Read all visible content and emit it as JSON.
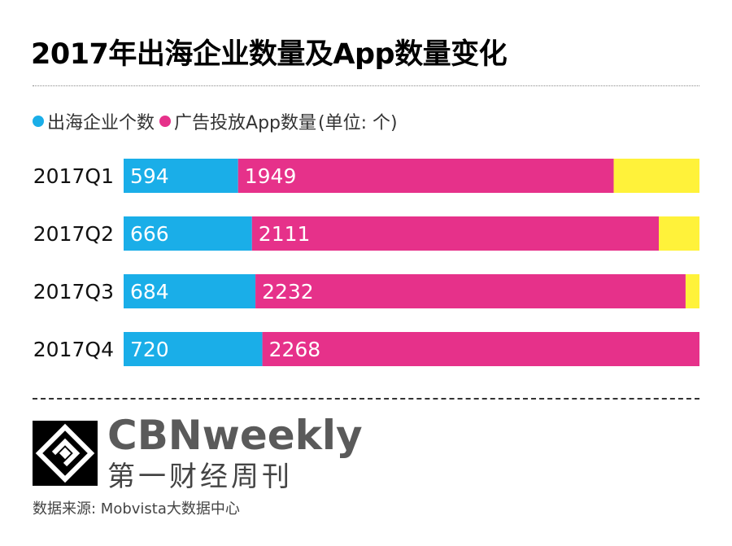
{
  "title": "2017年出海企业数量及App数量变化",
  "legend": {
    "items": [
      {
        "label": "出海企业个数",
        "color": "#1aaee8"
      },
      {
        "label": "广告投放App数量",
        "color": "#e6318a"
      }
    ],
    "unit": "(单位: 个)"
  },
  "colors": {
    "remainder": "#fff23a"
  },
  "chart_data": {
    "type": "bar",
    "orientation": "horizontal",
    "stacked": true,
    "categories": [
      "2017Q1",
      "2017Q2",
      "2017Q3",
      "2017Q4"
    ],
    "series": [
      {
        "name": "出海企业个数",
        "values": [
          594,
          666,
          684,
          720
        ]
      },
      {
        "name": "广告投放App数量",
        "values": [
          1949,
          2111,
          2232,
          2268
        ]
      }
    ],
    "xlim": [
      0,
      2988
    ],
    "grid": false,
    "legend_position": "top-left"
  },
  "brand": {
    "name_en": "CBNweekly",
    "name_cn": "第一财经周刊"
  },
  "source": "数据来源: Mobvista大数据中心"
}
